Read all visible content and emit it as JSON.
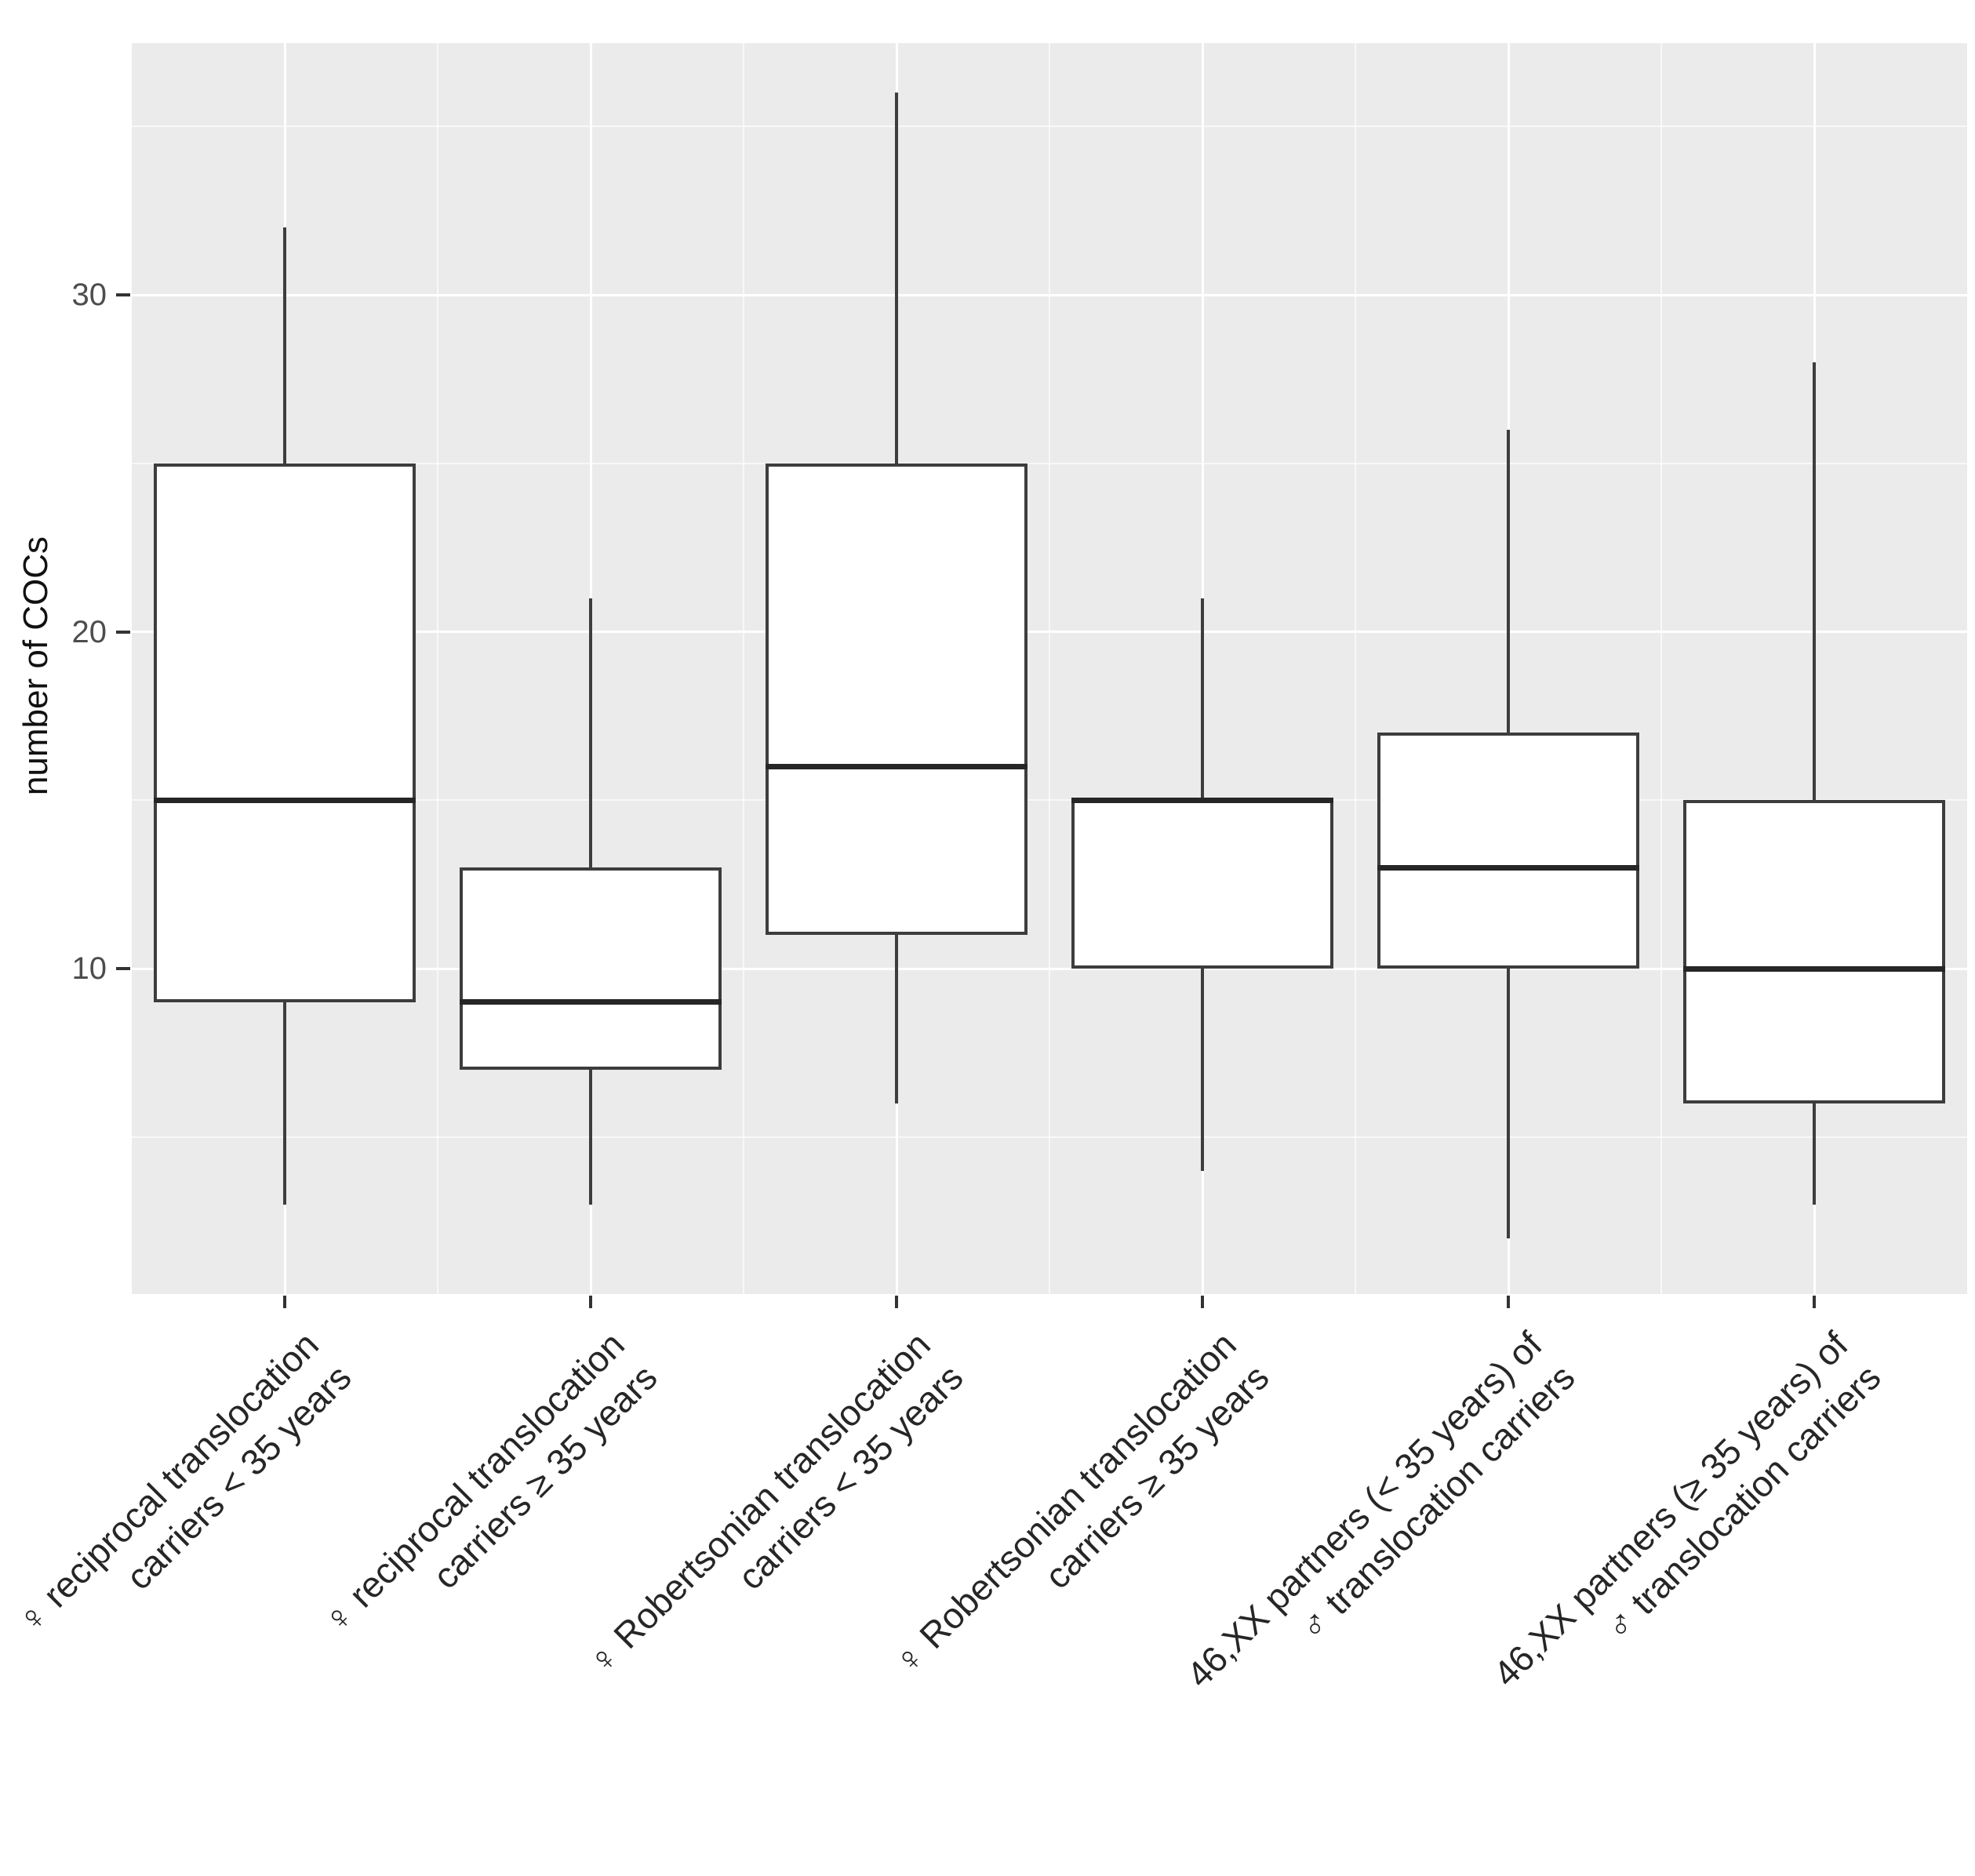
{
  "figure": {
    "panel_bg": "#EBEBEB",
    "gridline_color": "#FFFFFF",
    "box_stroke": "#3D3D3D",
    "box_fill": "#FFFFFF",
    "median_color": "#262626",
    "tick_color": "#333333",
    "tick_label_color": "#4D4D4D",
    "axis_label_color": "#262626"
  },
  "chart_data": {
    "type": "boxplot",
    "title": "",
    "xlabel": "",
    "ylabel": "number of COCs",
    "yticks": [
      10,
      20,
      30
    ],
    "ylim": [
      0.3,
      37.5
    ],
    "grid": {
      "major_y": [
        10,
        20,
        30
      ],
      "minor_y": [
        5,
        15,
        25,
        35
      ]
    },
    "legend_position": "none",
    "categories": [
      {
        "line1": "♀ reciprocal translocation",
        "line2": "carriers < 35 years"
      },
      {
        "line1": "♀ reciprocal translocation",
        "line2": "carriers ≥ 35 years"
      },
      {
        "line1": "♀ Robertsonian translocation",
        "line2": "carriers < 35 years"
      },
      {
        "line1": "♀ Robertsonian translocation",
        "line2": "carriers ≥ 35 years"
      },
      {
        "line1": "46,XX partners (< 35 years) of",
        "line2": "♂ translocation carriers"
      },
      {
        "line1": "46,XX partners (≥ 35 years) of",
        "line2": "♂ translocation carriers"
      }
    ],
    "series": [
      {
        "name": "♀ reciprocal translocation carriers < 35 years",
        "whisker_low": 3,
        "q1": 9,
        "median": 15,
        "q3": 25,
        "whisker_high": 32
      },
      {
        "name": "♀ reciprocal translocation carriers ≥ 35 years",
        "whisker_low": 3,
        "q1": 7,
        "median": 9,
        "q3": 13,
        "whisker_high": 21
      },
      {
        "name": "♀ Robertsonian translocation carriers < 35 years",
        "whisker_low": 6,
        "q1": 11,
        "median": 16,
        "q3": 25,
        "whisker_high": 36
      },
      {
        "name": "♀ Robertsonian translocation carriers ≥ 35 years",
        "whisker_low": 4,
        "q1": 10,
        "median": 15,
        "q3": 15,
        "whisker_high": 21
      },
      {
        "name": "46,XX partners (< 35 years) of ♂ translocation carriers",
        "whisker_low": 2,
        "q1": 10,
        "median": 13,
        "q3": 17,
        "whisker_high": 26
      },
      {
        "name": "46,XX partners (≥ 35 years) of ♂ translocation carriers",
        "whisker_low": 3,
        "q1": 6,
        "median": 10,
        "q3": 15,
        "whisker_high": 28
      }
    ]
  }
}
